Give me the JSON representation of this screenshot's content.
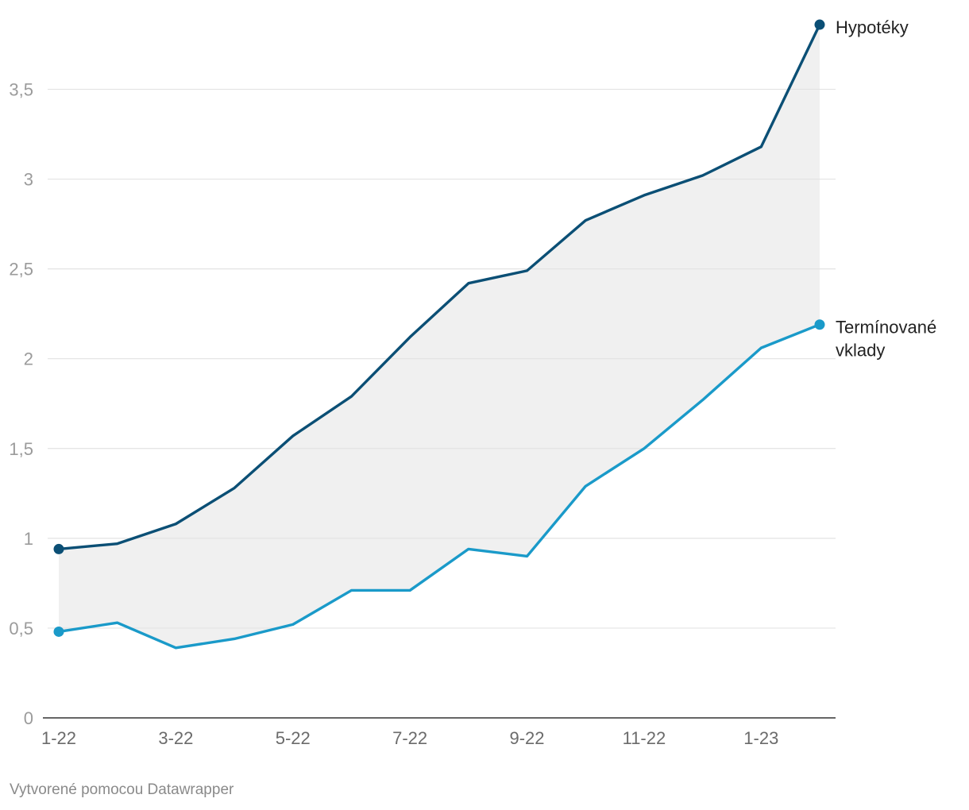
{
  "chart_data": {
    "type": "line",
    "title": "",
    "xlabel": "",
    "ylabel": "",
    "x": [
      "1-22",
      "2-22",
      "3-22",
      "4-22",
      "5-22",
      "6-22",
      "7-22",
      "8-22",
      "9-22",
      "10-22",
      "11-22",
      "12-22",
      "1-23",
      "2-23"
    ],
    "x_tick_labels": [
      "1-22",
      "",
      "3-22",
      "",
      "5-22",
      "",
      "7-22",
      "",
      "9-22",
      "",
      "11-22",
      "",
      "1-23",
      ""
    ],
    "y_ticks": [
      0,
      0.5,
      1,
      1.5,
      2,
      2.5,
      3,
      3.5
    ],
    "y_tick_labels": [
      "0",
      "0,5",
      "1",
      "1,5",
      "2",
      "2,5",
      "3",
      "3,5"
    ],
    "ylim": [
      0,
      3.9
    ],
    "grid": true,
    "area_between_series": true,
    "series": [
      {
        "name": "Hypotéky",
        "label_lines": [
          "Hypotéky"
        ],
        "color": "#0b4f75",
        "values": [
          0.94,
          0.97,
          1.08,
          1.28,
          1.57,
          1.79,
          2.12,
          2.42,
          2.49,
          2.77,
          2.91,
          3.02,
          3.18,
          3.86
        ]
      },
      {
        "name": "Termínované vklady",
        "label_lines": [
          "Termínované",
          "vklady"
        ],
        "color": "#1a9ac9",
        "values": [
          0.48,
          0.53,
          0.39,
          0.44,
          0.52,
          0.71,
          0.71,
          0.94,
          0.9,
          1.29,
          1.5,
          1.77,
          2.06,
          2.19
        ]
      }
    ],
    "fill_color": "#f0f0f0",
    "grid_color": "#e3e3e3",
    "axis_color": "#333333"
  },
  "footer": {
    "credit": "Vytvorené pomocou Datawrapper"
  }
}
